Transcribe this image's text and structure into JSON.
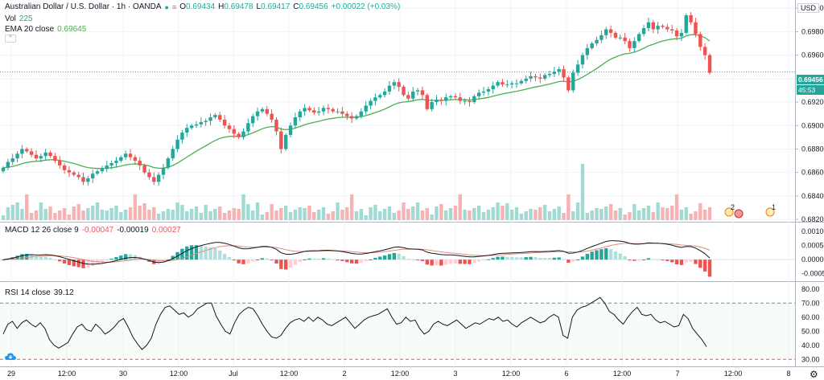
{
  "header": {
    "symbol": "Australian Dollar / U.S. Dollar · 1h · OANDA",
    "open_label": "O",
    "open": "0.69434",
    "high_label": "H",
    "high": "0.69478",
    "low_label": "L",
    "low": "0.69417",
    "close_label": "C",
    "close": "0.69456",
    "change": "+0.00022 (+0.03%)",
    "vol_label": "Vol",
    "vol": "225",
    "ema_label": "EMA 20 close",
    "ema": "0.69645"
  },
  "macd_legend": {
    "label": "MACD 12 26 close 9",
    "v1": "-0.00047",
    "v2": "-0.00019",
    "v3": "0.00027"
  },
  "rsi_legend": {
    "label": "RSI 14 close",
    "value": "39.12"
  },
  "currency": "USD",
  "price_axis": [
    "0.70000",
    "0.69800",
    "0.69600",
    "0.69400",
    "0.69200",
    "0.69000",
    "0.68800",
    "0.68600",
    "0.68400",
    "0.68200"
  ],
  "macd_axis": [
    "0.00100",
    "0.00050",
    "0.00000",
    "-0.00050"
  ],
  "rsi_axis": [
    "80.00",
    "70.00",
    "60.00",
    "50.00",
    "40.00",
    "30.00"
  ],
  "time_axis": [
    "29",
    "12:00",
    "30",
    "12:00",
    "Jul",
    "12:00",
    "2",
    "12:00",
    "3",
    "12:00",
    "6",
    "12:00",
    "7",
    "12:00",
    "8"
  ],
  "last_price_tag": "0.69456",
  "countdown_tag": "45:53",
  "event_badges": [
    "2",
    "1"
  ],
  "colors": {
    "up": "#26a69a",
    "down": "#ef5350",
    "ema": "#4caf50",
    "grid": "#f0f3fa",
    "rsi_band": "#4caf50"
  },
  "chart_data": [
    {
      "type": "candlestick",
      "title": "Australian Dollar / U.S. Dollar · 1h · OANDA",
      "ylim": [
        0.6818,
        0.7007
      ],
      "close_series": [
        0.6864,
        0.6869,
        0.6872,
        0.6876,
        0.688,
        0.6878,
        0.6875,
        0.6872,
        0.6874,
        0.6877,
        0.6874,
        0.687,
        0.6866,
        0.6862,
        0.686,
        0.6858,
        0.6856,
        0.6852,
        0.6855,
        0.6859,
        0.6861,
        0.6863,
        0.6866,
        0.6868,
        0.687,
        0.6873,
        0.6876,
        0.6873,
        0.687,
        0.6866,
        0.686,
        0.6856,
        0.6852,
        0.6858,
        0.6864,
        0.6872,
        0.688,
        0.6888,
        0.6894,
        0.6898,
        0.69,
        0.6901,
        0.6903,
        0.6904,
        0.6907,
        0.6909,
        0.6905,
        0.69,
        0.6897,
        0.6893,
        0.689,
        0.6895,
        0.6902,
        0.6908,
        0.6912,
        0.6914,
        0.691,
        0.6905,
        0.6895,
        0.688,
        0.6892,
        0.69,
        0.6907,
        0.6912,
        0.6915,
        0.6913,
        0.6911,
        0.6912,
        0.6915,
        0.6914,
        0.6912,
        0.6912,
        0.691,
        0.6908,
        0.6906,
        0.6908,
        0.6912,
        0.6917,
        0.6921,
        0.6924,
        0.6926,
        0.6929,
        0.6934,
        0.6937,
        0.6933,
        0.6926,
        0.6923,
        0.6929,
        0.693,
        0.6926,
        0.6914,
        0.692,
        0.6922,
        0.6921,
        0.6924,
        0.6925,
        0.6924,
        0.6921,
        0.6921,
        0.692,
        0.6925,
        0.6928,
        0.6929,
        0.6931,
        0.6934,
        0.6937,
        0.6935,
        0.6935,
        0.6936,
        0.6936,
        0.6938,
        0.694,
        0.6942,
        0.6941,
        0.694,
        0.6943,
        0.6944,
        0.6946,
        0.6948,
        0.6941,
        0.693,
        0.6945,
        0.6952,
        0.696,
        0.6966,
        0.697,
        0.6973,
        0.6977,
        0.6982,
        0.6979,
        0.6975,
        0.6975,
        0.6972,
        0.6966,
        0.6972,
        0.6978,
        0.6983,
        0.6988,
        0.6982,
        0.6985,
        0.6984,
        0.6982,
        0.6981,
        0.6976,
        0.6979,
        0.6994,
        0.6988,
        0.6978,
        0.6967,
        0.696,
        0.6945
      ],
      "ema_last": 0.69645,
      "volume_peak_index": 123
    },
    {
      "type": "bar",
      "title": "MACD 12 26 close 9",
      "ylim": [
        -0.00065,
        0.0012
      ],
      "series": [
        {
          "name": "MACD"
        },
        {
          "name": "Signal"
        },
        {
          "name": "Histogram"
        }
      ],
      "last_values": [
        -0.00047,
        -0.00019,
        0.00027
      ]
    },
    {
      "type": "line",
      "title": "RSI 14 close",
      "ylim": [
        25,
        85
      ],
      "bands": [
        30,
        70
      ],
      "values": [
        48,
        55,
        57,
        52,
        56,
        58,
        55,
        53,
        56,
        52,
        44,
        40,
        38,
        40,
        42,
        48,
        53,
        55,
        51,
        50,
        55,
        52,
        48,
        50,
        53,
        57,
        59,
        53,
        46,
        41,
        37,
        40,
        45,
        55,
        62,
        67,
        68,
        65,
        62,
        63,
        60,
        62,
        66,
        68,
        70,
        70,
        61,
        55,
        50,
        48,
        56,
        62,
        65,
        67,
        66,
        61,
        55,
        50,
        46,
        45,
        47,
        52,
        56,
        58,
        59,
        57,
        60,
        57,
        60,
        58,
        55,
        54,
        56,
        58,
        60,
        56,
        52,
        55,
        58,
        60,
        61,
        62,
        64,
        66,
        60,
        55,
        56,
        60,
        57,
        58,
        52,
        48,
        50,
        55,
        57,
        55,
        54,
        56,
        58,
        55,
        52,
        54,
        56,
        55,
        57,
        59,
        58,
        60,
        57,
        58,
        55,
        53,
        56,
        58,
        60,
        58,
        56,
        57,
        60,
        62,
        60,
        47,
        45,
        60,
        65,
        67,
        68,
        70,
        72,
        74,
        70,
        64,
        62,
        58,
        55,
        60,
        64,
        67,
        62,
        61,
        62,
        58,
        56,
        57,
        55,
        53,
        54,
        62,
        59,
        52,
        48,
        44,
        39
      ]
    }
  ]
}
